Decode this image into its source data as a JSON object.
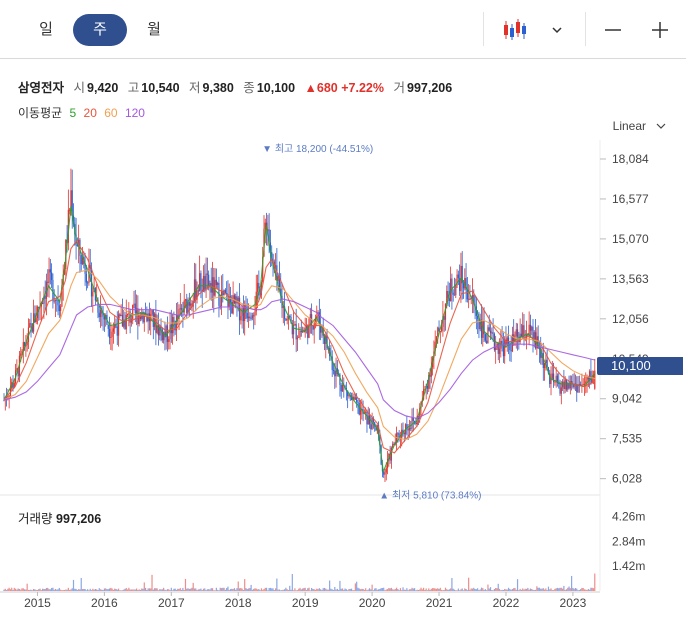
{
  "tabs": [
    {
      "label": "일",
      "active": false
    },
    {
      "label": "주",
      "active": true
    },
    {
      "label": "월",
      "active": false
    }
  ],
  "toolbar": {
    "chart_type_icon": "candlestick-icon",
    "dropdown_icon": "chevron-down-icon",
    "zoom_out_icon": "minus-icon",
    "zoom_in_icon": "plus-icon"
  },
  "stock": {
    "name": "삼영전자",
    "open_label": "시",
    "open": "9,420",
    "high_label": "고",
    "high": "10,540",
    "low_label": "저",
    "low": "9,380",
    "close_label": "종",
    "close": "10,100",
    "change": "▲680",
    "change_pct": "+7.22%",
    "volume_label": "거",
    "volume": "997,206"
  },
  "moving_average": {
    "label": "이동평균",
    "periods": [
      {
        "label": "5",
        "color": "#2ca02c"
      },
      {
        "label": "20",
        "color": "#e8543b"
      },
      {
        "label": "60",
        "color": "#f0a050"
      },
      {
        "label": "120",
        "color": "#a259e0"
      }
    ]
  },
  "scale": {
    "label": "Linear"
  },
  "current_price_label": "10,100",
  "annotations": {
    "high": "▼ 최고 18,200 (-44.51%)",
    "low": "▲ 최저 5,810 (73.84%)"
  },
  "volume_panel": {
    "label": "거래량",
    "value": "997,206"
  },
  "colors": {
    "up": "#e0312b",
    "down": "#2c5fcf",
    "accent": "#2f4f8f"
  },
  "chart_data": {
    "type": "candlestick",
    "interval": "weekly",
    "y_ticks": [
      "18,084",
      "16,577",
      "15,070",
      "13,563",
      "12,056",
      "10,549",
      "9,042",
      "7,535",
      "6,028"
    ],
    "y_tick_values": [
      18084,
      16577,
      15070,
      13563,
      12056,
      10549,
      9042,
      7535,
      6028
    ],
    "ylim": [
      5600,
      18800
    ],
    "x_ticks": [
      "2015",
      "2016",
      "2017",
      "2018",
      "2019",
      "2020",
      "2021",
      "2022",
      "2023"
    ],
    "volume_ticks": [
      "4.26m",
      "2.84m",
      "1.42m"
    ],
    "volume_tick_values": [
      4.26,
      2.84,
      1.42
    ],
    "volume_ylim": [
      0,
      5.2
    ],
    "close_series": [
      [
        "2014-07",
        9000
      ],
      [
        "2014-09",
        9800
      ],
      [
        "2014-11",
        11200
      ],
      [
        "2015-01",
        12400
      ],
      [
        "2015-03",
        13500
      ],
      [
        "2015-05",
        12600
      ],
      [
        "2015-06",
        14500
      ],
      [
        "2015-07",
        16800
      ],
      [
        "2015-08",
        14800
      ],
      [
        "2015-10",
        13800
      ],
      [
        "2015-12",
        12500
      ],
      [
        "2016-02",
        11700
      ],
      [
        "2016-04",
        11900
      ],
      [
        "2016-06",
        12200
      ],
      [
        "2016-08",
        12300
      ],
      [
        "2016-10",
        11900
      ],
      [
        "2016-12",
        11400
      ],
      [
        "2017-02",
        12000
      ],
      [
        "2017-04",
        12700
      ],
      [
        "2017-06",
        13400
      ],
      [
        "2017-08",
        13300
      ],
      [
        "2017-10",
        12900
      ],
      [
        "2017-12",
        12600
      ],
      [
        "2018-02",
        12300
      ],
      [
        "2018-04",
        12600
      ],
      [
        "2018-05",
        13400
      ],
      [
        "2018-06",
        16000
      ],
      [
        "2018-07",
        14200
      ],
      [
        "2018-09",
        12500
      ],
      [
        "2018-11",
        11600
      ],
      [
        "2019-01",
        11600
      ],
      [
        "2019-03",
        12200
      ],
      [
        "2019-04",
        11700
      ],
      [
        "2019-06",
        10300
      ],
      [
        "2019-08",
        9400
      ],
      [
        "2019-10",
        8800
      ],
      [
        "2019-12",
        8300
      ],
      [
        "2020-02",
        7800
      ],
      [
        "2020-03",
        6100
      ],
      [
        "2020-05",
        7400
      ],
      [
        "2020-07",
        8000
      ],
      [
        "2020-09",
        8200
      ],
      [
        "2020-11",
        9800
      ],
      [
        "2021-01",
        11600
      ],
      [
        "2021-03",
        13200
      ],
      [
        "2021-05",
        13600
      ],
      [
        "2021-07",
        12700
      ],
      [
        "2021-09",
        11500
      ],
      [
        "2021-11",
        11100
      ],
      [
        "2022-01",
        11000
      ],
      [
        "2022-03",
        11300
      ],
      [
        "2022-05",
        11600
      ],
      [
        "2022-07",
        10900
      ],
      [
        "2022-09",
        9700
      ],
      [
        "2022-11",
        9500
      ],
      [
        "2023-01",
        9600
      ],
      [
        "2023-03",
        9500
      ],
      [
        "2023-05",
        10100
      ]
    ],
    "ma5": [
      9000,
      9800,
      11200,
      12300,
      13300,
      12700,
      14200,
      16300,
      15000,
      13900,
      12600,
      11800,
      11900,
      12200,
      12300,
      11900,
      11400,
      12000,
      12700,
      13300,
      13300,
      12900,
      12600,
      12300,
      12600,
      13300,
      15600,
      14300,
      12600,
      11700,
      11600,
      12100,
      11700,
      10400,
      9500,
      8900,
      8400,
      7900,
      6300,
      7300,
      7900,
      8200,
      9700,
      11500,
      13100,
      13600,
      12800,
      11600,
      11200,
      11000,
      11300,
      11500,
      11000,
      9800,
      9600,
      9600,
      9500,
      10000
    ],
    "ma20": [
      9000,
      9500,
      10400,
      11600,
      12700,
      12900,
      13500,
      14700,
      15000,
      14300,
      13200,
      12300,
      12000,
      12000,
      12200,
      12000,
      11600,
      11700,
      12300,
      13000,
      13300,
      13100,
      12800,
      12500,
      12400,
      12900,
      14000,
      14300,
      13300,
      12300,
      11800,
      11800,
      11800,
      11000,
      10000,
      9200,
      8600,
      8100,
      7200,
      7000,
      7500,
      8000,
      8900,
      10400,
      11900,
      13000,
      13100,
      12400,
      11700,
      11200,
      11200,
      11400,
      11200,
      10400,
      9900,
      9600,
      9500,
      9700
    ],
    "ma60": [
      9000,
      9200,
      9700,
      10600,
      11500,
      12000,
      12600,
      13300,
      13800,
      13900,
      13500,
      12900,
      12500,
      12200,
      12200,
      12100,
      11900,
      11900,
      12100,
      12500,
      12800,
      12900,
      12800,
      12600,
      12500,
      12600,
      13000,
      13300,
      13200,
      12700,
      12200,
      11900,
      11800,
      11400,
      10800,
      10000,
      9300,
      8700,
      8000,
      7600,
      7500,
      7700,
      8200,
      9100,
      10200,
      11300,
      11900,
      12000,
      11800,
      11500,
      11300,
      11300,
      11200,
      10800,
      10400,
      10100,
      9900,
      9800
    ],
    "ma120": [
      9000,
      9100,
      9300,
      9700,
      10200,
      10700,
      11200,
      11700,
      12200,
      12500,
      12600,
      12600,
      12500,
      12400,
      12400,
      12400,
      12300,
      12200,
      12200,
      12300,
      12400,
      12500,
      12500,
      12500,
      12400,
      12400,
      12500,
      12700,
      12800,
      12700,
      12500,
      12300,
      12100,
      11800,
      11300,
      10800,
      10200,
      9600,
      9000,
      8600,
      8400,
      8300,
      8500,
      8900,
      9400,
      10000,
      10500,
      10800,
      11000,
      11100,
      11100,
      11100,
      11000,
      10900,
      10800,
      10700,
      10600,
      10500
    ],
    "last_candle": {
      "open": 9420,
      "high": 10540,
      "low": 9380,
      "close": 10100,
      "volume": 997206
    }
  }
}
